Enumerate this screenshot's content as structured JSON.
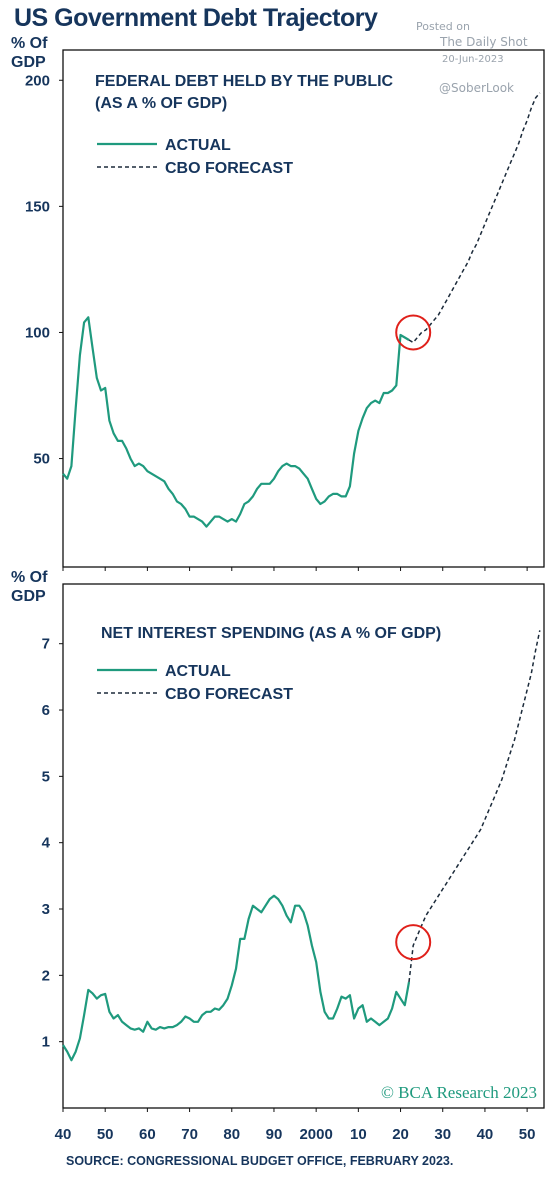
{
  "header": {
    "title": "US Government Debt Trajectory",
    "posted_on": "Posted on",
    "publisher": "The Daily Shot",
    "date": "20-Jun-2023",
    "handle": "@SoberLook"
  },
  "source": "SOURCE: CONGRESSIONAL BUDGET OFFICE, FEBRUARY 2023.",
  "brand": "© BCA Research 2023",
  "colors": {
    "actual": "#1f9a7e",
    "forecast": "#1b2a3a",
    "text": "#16355c",
    "circle": "#e0201a"
  },
  "chart_data": [
    {
      "type": "line",
      "title": "FEDERAL DEBT HELD BY THE PUBLIC",
      "subtitle": "(AS A % OF GDP)",
      "ylabel_line1": "% Of",
      "ylabel_line2": "GDP",
      "yticks": [
        50,
        100,
        150,
        200
      ],
      "ylim": [
        7,
        212
      ],
      "xlim": [
        1940,
        2054
      ],
      "legend": "top-left",
      "grid": false,
      "series": [
        {
          "name": "ACTUAL",
          "style": "solid",
          "x": [
            1940,
            1941,
            1942,
            1943,
            1944,
            1945,
            1946,
            1947,
            1948,
            1949,
            1950,
            1951,
            1952,
            1953,
            1954,
            1955,
            1956,
            1957,
            1958,
            1959,
            1960,
            1961,
            1962,
            1963,
            1964,
            1965,
            1966,
            1967,
            1968,
            1969,
            1970,
            1971,
            1972,
            1973,
            1974,
            1975,
            1976,
            1977,
            1978,
            1979,
            1980,
            1981,
            1982,
            1983,
            1984,
            1985,
            1986,
            1987,
            1988,
            1989,
            1990,
            1991,
            1992,
            1993,
            1994,
            1995,
            1996,
            1997,
            1998,
            1999,
            2000,
            2001,
            2002,
            2003,
            2004,
            2005,
            2006,
            2007,
            2008,
            2009,
            2010,
            2011,
            2012,
            2013,
            2014,
            2015,
            2016,
            2017,
            2018,
            2019,
            2020,
            2021,
            2022
          ],
          "y": [
            44,
            42,
            47,
            70,
            91,
            104,
            106,
            94,
            82,
            77,
            78,
            65,
            60,
            57,
            57,
            54,
            50,
            47,
            48,
            47,
            45,
            44,
            43,
            42,
            41,
            38,
            36,
            33,
            32,
            30,
            27,
            27,
            26,
            25,
            23,
            25,
            27,
            27,
            26,
            25,
            26,
            25,
            28,
            32,
            33,
            35,
            38,
            40,
            40,
            40,
            42,
            45,
            47,
            48,
            47,
            47,
            46,
            44,
            42,
            38,
            34,
            32,
            33,
            35,
            36,
            36,
            35,
            35,
            39,
            52,
            61,
            66,
            70,
            72,
            73,
            72,
            76,
            76,
            77,
            79,
            99,
            98,
            97
          ]
        },
        {
          "name": "CBO FORECAST",
          "style": "dashed",
          "x": [
            2022,
            2023,
            2024,
            2025,
            2026,
            2027,
            2028,
            2029,
            2030,
            2031,
            2032,
            2033,
            2034,
            2035,
            2036,
            2037,
            2038,
            2039,
            2040,
            2041,
            2042,
            2043,
            2044,
            2045,
            2046,
            2047,
            2048,
            2049,
            2050,
            2051,
            2052,
            2053
          ],
          "y": [
            97,
            96,
            98,
            100,
            101,
            103,
            105,
            107,
            110,
            113,
            116,
            119,
            122,
            125,
            128,
            132,
            135,
            139,
            143,
            147,
            151,
            155,
            159,
            163,
            167,
            171,
            175,
            180,
            184,
            189,
            193,
            195
          ]
        }
      ],
      "annotation": {
        "type": "circle",
        "x": 2023,
        "y": 100
      }
    },
    {
      "type": "line",
      "title": "NET INTEREST SPENDING (AS A % OF GDP)",
      "ylabel_line1": "% Of",
      "ylabel_line2": "GDP",
      "yticks": [
        1,
        2,
        3,
        4,
        5,
        6,
        7
      ],
      "ylim": [
        0.0,
        7.9
      ],
      "xlim": [
        1940,
        2054
      ],
      "xticks": [
        "40",
        "50",
        "60",
        "70",
        "80",
        "90",
        "2000",
        "10",
        "20",
        "30",
        "40",
        "50"
      ],
      "xtick_values": [
        1940,
        1950,
        1960,
        1970,
        1980,
        1990,
        2000,
        2010,
        2020,
        2030,
        2040,
        2050
      ],
      "legend": "top-left",
      "grid": false,
      "series": [
        {
          "name": "ACTUAL",
          "style": "solid",
          "x": [
            1940,
            1941,
            1942,
            1943,
            1944,
            1945,
            1946,
            1947,
            1948,
            1949,
            1950,
            1951,
            1952,
            1953,
            1954,
            1955,
            1956,
            1957,
            1958,
            1959,
            1960,
            1961,
            1962,
            1963,
            1964,
            1965,
            1966,
            1967,
            1968,
            1969,
            1970,
            1971,
            1972,
            1973,
            1974,
            1975,
            1976,
            1977,
            1978,
            1979,
            1980,
            1981,
            1982,
            1983,
            1984,
            1985,
            1986,
            1987,
            1988,
            1989,
            1990,
            1991,
            1992,
            1993,
            1994,
            1995,
            1996,
            1997,
            1998,
            1999,
            2000,
            2001,
            2002,
            2003,
            2004,
            2005,
            2006,
            2007,
            2008,
            2009,
            2010,
            2011,
            2012,
            2013,
            2014,
            2015,
            2016,
            2017,
            2018,
            2019,
            2020,
            2021,
            2022
          ],
          "y": [
            0.95,
            0.85,
            0.72,
            0.85,
            1.05,
            1.4,
            1.78,
            1.73,
            1.65,
            1.7,
            1.72,
            1.45,
            1.35,
            1.4,
            1.3,
            1.25,
            1.2,
            1.18,
            1.2,
            1.15,
            1.3,
            1.2,
            1.18,
            1.22,
            1.2,
            1.22,
            1.22,
            1.25,
            1.3,
            1.38,
            1.35,
            1.3,
            1.3,
            1.4,
            1.45,
            1.45,
            1.5,
            1.48,
            1.55,
            1.65,
            1.85,
            2.1,
            2.55,
            2.55,
            2.85,
            3.05,
            3.0,
            2.95,
            3.05,
            3.15,
            3.2,
            3.15,
            3.05,
            2.9,
            2.8,
            3.05,
            3.05,
            2.95,
            2.75,
            2.45,
            2.2,
            1.75,
            1.45,
            1.35,
            1.35,
            1.5,
            1.68,
            1.65,
            1.7,
            1.35,
            1.5,
            1.55,
            1.3,
            1.35,
            1.3,
            1.25,
            1.3,
            1.35,
            1.5,
            1.75,
            1.65,
            1.55,
            1.9
          ]
        },
        {
          "name": "CBO FORECAST",
          "style": "dashed",
          "x": [
            2022,
            2023,
            2024,
            2025,
            2026,
            2027,
            2028,
            2029,
            2030,
            2031,
            2032,
            2033,
            2034,
            2035,
            2036,
            2037,
            2038,
            2039,
            2040,
            2041,
            2042,
            2043,
            2044,
            2045,
            2046,
            2047,
            2048,
            2049,
            2050,
            2051,
            2052,
            2053
          ],
          "y": [
            1.9,
            2.45,
            2.6,
            2.75,
            2.9,
            3.0,
            3.1,
            3.2,
            3.3,
            3.4,
            3.5,
            3.6,
            3.7,
            3.8,
            3.9,
            4.0,
            4.1,
            4.2,
            4.35,
            4.5,
            4.65,
            4.8,
            4.95,
            5.15,
            5.35,
            5.55,
            5.8,
            6.05,
            6.3,
            6.55,
            6.9,
            7.2
          ]
        }
      ],
      "annotation": {
        "type": "circle",
        "x": 2023,
        "y": 2.5
      }
    }
  ]
}
